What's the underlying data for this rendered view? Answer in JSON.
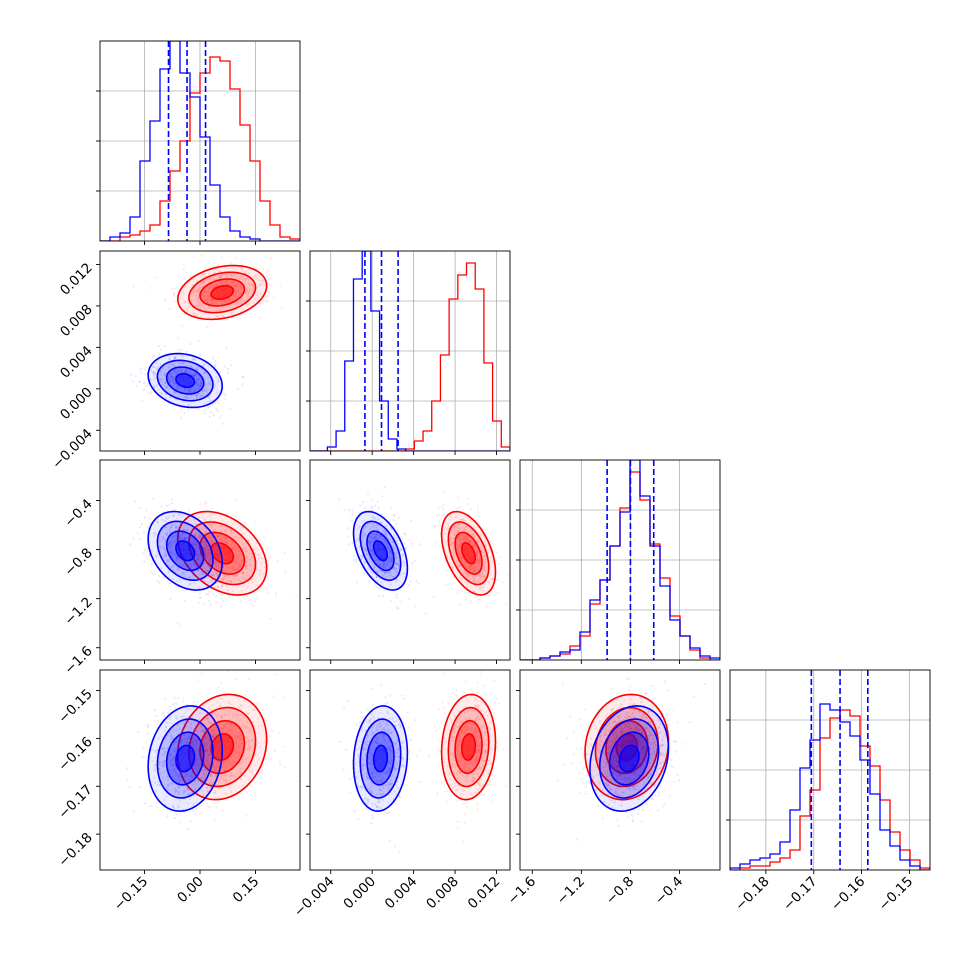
{
  "chart_data": {
    "type": "corner",
    "title": "",
    "grid": true,
    "legend": "none",
    "parameters": 4,
    "series": [
      {
        "color": "#ff0000",
        "mean": [
          0.06,
          0.0093,
          -0.83,
          -0.1618
        ],
        "std": [
          0.06,
          0.0013,
          0.17,
          0.0055
        ],
        "corr": [
          [
            1,
            0.25,
            -0.35,
            0.15
          ],
          [
            0.25,
            1,
            -0.45,
            0.1
          ],
          [
            -0.35,
            -0.45,
            1,
            0.1
          ],
          [
            0.15,
            0.1,
            0.1,
            1
          ]
        ],
        "hist": [
          [
            0.0,
            0.0,
            0.02,
            0.03,
            0.05,
            0.08,
            0.2,
            0.35,
            0.5,
            0.74,
            0.84,
            0.92,
            0.9,
            0.76,
            0.58,
            0.4,
            0.2,
            0.08,
            0.02,
            0.01
          ],
          [
            0.0,
            0.0,
            0.0,
            0.0,
            0.0,
            0.0,
            0.0,
            0.0,
            0.0,
            0.0,
            0.0,
            0.01,
            0.05,
            0.1,
            0.25,
            0.48,
            0.76,
            0.88,
            0.94,
            0.81,
            0.44,
            0.15,
            0.02
          ],
          [
            0.0,
            0.0,
            0.01,
            0.02,
            0.03,
            0.07,
            0.12,
            0.28,
            0.4,
            0.57,
            0.76,
            0.94,
            0.8,
            0.58,
            0.41,
            0.22,
            0.12,
            0.05,
            0.01,
            0.0
          ],
          [
            0.0,
            0.01,
            0.02,
            0.02,
            0.04,
            0.06,
            0.1,
            0.27,
            0.4,
            0.66,
            0.76,
            0.8,
            0.77,
            0.62,
            0.52,
            0.35,
            0.19,
            0.1,
            0.05,
            0.01
          ]
        ]
      },
      {
        "color": "#0000ff",
        "mean": [
          -0.04,
          0.0008,
          -0.81,
          -0.1642
        ],
        "std": [
          0.05,
          0.0013,
          0.16,
          0.0055
        ],
        "corr": [
          [
            1,
            -0.2,
            -0.3,
            0.15
          ],
          [
            -0.2,
            1,
            -0.45,
            0.1
          ],
          [
            -0.3,
            -0.45,
            1,
            0.2
          ],
          [
            0.15,
            0.1,
            0.2,
            1
          ]
        ],
        "hist": [
          [
            0.0,
            0.02,
            0.04,
            0.12,
            0.4,
            0.6,
            0.86,
            1.0,
            0.84,
            0.72,
            0.52,
            0.28,
            0.12,
            0.05,
            0.02,
            0.01,
            0.0,
            0.0,
            0.0,
            0.0
          ],
          [
            0.0,
            0.0,
            0.02,
            0.1,
            0.45,
            0.86,
            1.0,
            0.7,
            0.25,
            0.06,
            0.01,
            0.0,
            0.0,
            0.0,
            0.0,
            0.0,
            0.0,
            0.0,
            0.0,
            0.0,
            0.0,
            0.0,
            0.0
          ],
          [
            0.0,
            0.0,
            0.01,
            0.02,
            0.04,
            0.05,
            0.14,
            0.3,
            0.4,
            0.57,
            0.74,
            1.0,
            0.82,
            0.57,
            0.37,
            0.2,
            0.12,
            0.06,
            0.02,
            0.01
          ],
          [
            0.01,
            0.03,
            0.05,
            0.06,
            0.08,
            0.14,
            0.3,
            0.51,
            0.65,
            0.83,
            0.8,
            0.74,
            0.67,
            0.55,
            0.38,
            0.2,
            0.12,
            0.05,
            0.02,
            0.0
          ]
        ]
      }
    ],
    "blue_quantiles": [
      [
        -0.085,
        -0.035,
        0.015
      ],
      [
        -0.0007,
        0.0009,
        0.0025
      ],
      [
        -0.99,
        -0.8,
        -0.61
      ],
      [
        -0.1705,
        -0.1645,
        -0.1587
      ]
    ],
    "axes": [
      {
        "range": [
          -0.27,
          0.27
        ],
        "ticks": [
          -0.15,
          0.0,
          0.15
        ],
        "tick_labels": [
          "−0.15",
          "0.00",
          "0.15"
        ]
      },
      {
        "range": [
          -0.006,
          0.0133
        ],
        "ticks": [
          -0.004,
          0.0,
          0.004,
          0.008,
          0.012
        ],
        "tick_labels": [
          "−0.004",
          "0.000",
          "0.004",
          "0.008",
          "0.012"
        ]
      },
      {
        "range": [
          -1.7,
          -0.07
        ],
        "ticks": [
          -1.6,
          -1.2,
          -0.8,
          -0.4
        ],
        "tick_labels": [
          "−1.6",
          "−1.2",
          "−0.8",
          "−0.4"
        ]
      },
      {
        "range": [
          -0.1875,
          -0.1457
        ],
        "ticks": [
          -0.18,
          -0.17,
          -0.16,
          -0.15
        ],
        "tick_labels": [
          "−0.18",
          "−0.17",
          "−0.16",
          "−0.15"
        ]
      }
    ]
  }
}
